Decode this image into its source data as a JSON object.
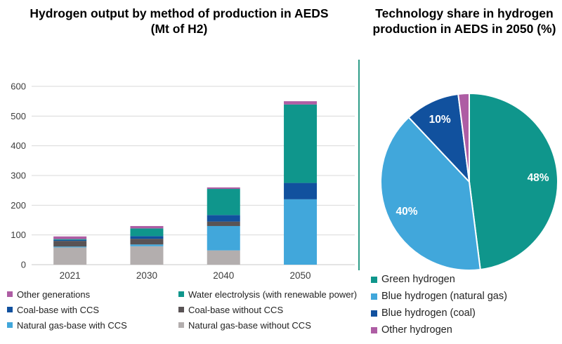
{
  "bar_chart": {
    "title": "Hydrogen output by method of production in AEDS (Mt of H2)",
    "legend_columns": [
      [
        {
          "label": "Other generations",
          "color": "#ae5da4"
        },
        {
          "label": "Coal-base with CCS",
          "color": "#11519e"
        },
        {
          "label": "Natural gas-base with CCS",
          "color": "#41a7db"
        }
      ],
      [
        {
          "label": "Water electrolysis (with renewable power)",
          "color": "#0f968c"
        },
        {
          "label": "Coal-base without CCS",
          "color": "#595355"
        },
        {
          "label": "Natural gas-base without CCS",
          "color": "#b3aeae"
        }
      ]
    ]
  },
  "pie_chart": {
    "title": "Technology share in hydrogen production in AEDS in 2050 (%)",
    "legend": [
      {
        "label": "Green hydrogen",
        "color": "#0f968c"
      },
      {
        "label": "Blue hydrogen (natural gas)",
        "color": "#41a7db"
      },
      {
        "label": "Blue hydrogen (coal)",
        "color": "#11519e"
      },
      {
        "label": "Other hydrogen",
        "color": "#ae5da4"
      }
    ]
  },
  "chart_data": [
    {
      "type": "bar",
      "stacked": true,
      "title": "Hydrogen output by method of production in AEDS (Mt of H2)",
      "categories": [
        "2021",
        "2030",
        "2040",
        "2050"
      ],
      "series": [
        {
          "name": "Natural gas-base without CCS",
          "color": "#b3aeae",
          "values": [
            58,
            62,
            48,
            0
          ]
        },
        {
          "name": "Natural gas-base with CCS",
          "color": "#41a7db",
          "values": [
            3,
            6,
            82,
            220
          ]
        },
        {
          "name": "Coal-base without CCS",
          "color": "#595355",
          "values": [
            19,
            19,
            15,
            0
          ]
        },
        {
          "name": "Coal-base with CCS",
          "color": "#11519e",
          "values": [
            3,
            9,
            22,
            55
          ]
        },
        {
          "name": "Water electrolysis (with renewable power)",
          "color": "#0f968c",
          "values": [
            3,
            26,
            88,
            264
          ]
        },
        {
          "name": "Other generations",
          "color": "#ae5da4",
          "values": [
            9,
            8,
            5,
            11
          ]
        }
      ],
      "totals": [
        95,
        130,
        260,
        550
      ],
      "ylabel": "",
      "xlabel": "",
      "ylim": [
        0,
        600
      ],
      "yticks": [
        0,
        100,
        200,
        300,
        400,
        500,
        600
      ],
      "grid": true,
      "legend_position": "bottom"
    },
    {
      "type": "pie",
      "title": "Technology share in hydrogen production in AEDS in 2050 (%)",
      "start_angle_deg": 0,
      "direction": "clockwise",
      "slices": [
        {
          "label": "Green hydrogen",
          "value": 48,
          "display": "48%",
          "color": "#0f968c"
        },
        {
          "label": "Blue hydrogen (natural gas)",
          "value": 40,
          "display": "40%",
          "color": "#41a7db"
        },
        {
          "label": "Blue hydrogen (coal)",
          "value": 10,
          "display": "10%",
          "color": "#11519e"
        },
        {
          "label": "Other hydrogen",
          "value": 2,
          "display": "2%",
          "color": "#ae5da4"
        }
      ],
      "legend_position": "bottom-left"
    }
  ],
  "style": {
    "gridline_color": "#d9d9d9",
    "axis_line_color": "#c8c8c8",
    "tick_text_color": "#3d3d3d",
    "divider_color": "#2e9d88"
  }
}
